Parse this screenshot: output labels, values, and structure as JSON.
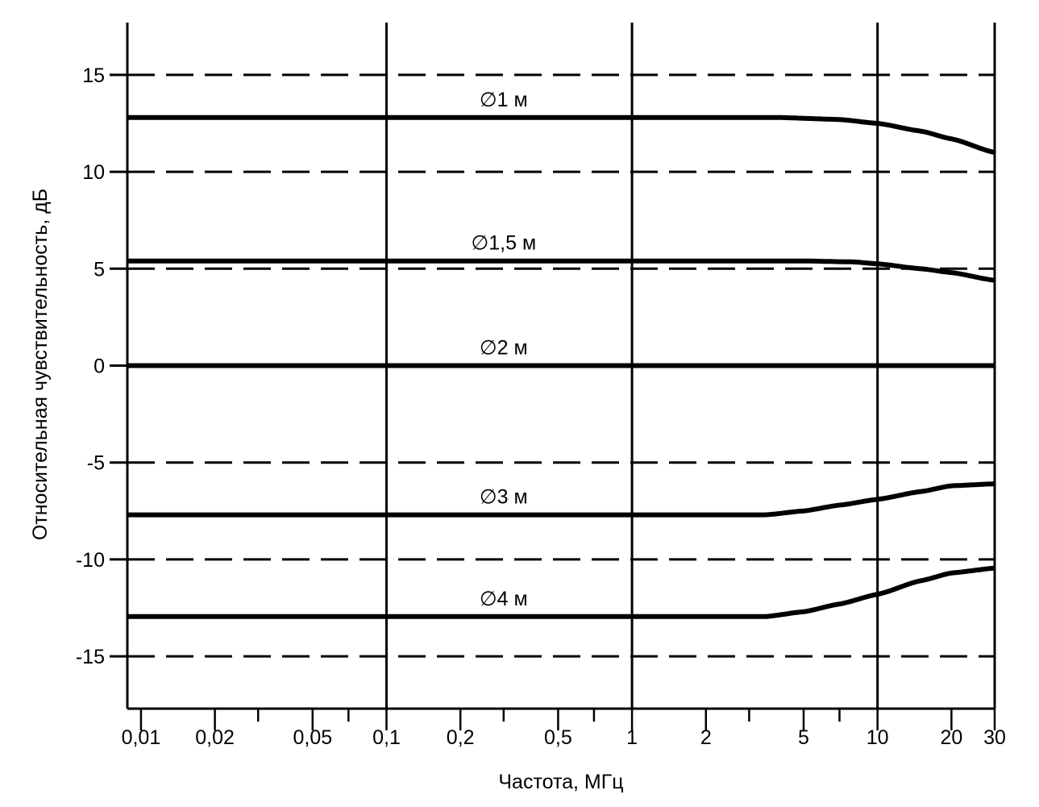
{
  "chart_data": {
    "type": "line",
    "title": "",
    "xlabel": "Частота, МГц",
    "ylabel": "Относительная чувствительность, дБ",
    "xscale": "log",
    "xlim": [
      0.0088,
      30
    ],
    "ylim": [
      -17.7,
      17.7
    ],
    "x_ticks": [
      0.01,
      0.02,
      0.05,
      0.1,
      0.2,
      0.5,
      1,
      2,
      5,
      10,
      20,
      30
    ],
    "x_tick_labels": [
      "0,01",
      "0,02",
      "0,05",
      "0,1",
      "0,2",
      "0,5",
      "1",
      "2",
      "5",
      "10",
      "20",
      "30"
    ],
    "x_minor_ticks": [
      0.01,
      0.02,
      0.03,
      0.05,
      0.07,
      0.1,
      0.2,
      0.3,
      0.5,
      0.7,
      1,
      2,
      3,
      5,
      7,
      10,
      20,
      30
    ],
    "x_grid_solid": [
      0.1,
      1,
      10
    ],
    "y_ticks": [
      15,
      10,
      5,
      0,
      -5,
      -10,
      -15
    ],
    "y_tick_labels": [
      "15",
      "10",
      "5",
      "0",
      "-5",
      "-10",
      "-15"
    ],
    "y_grid_dashed": [
      15,
      10,
      5,
      -5,
      -10,
      -15
    ],
    "grid": true,
    "series": [
      {
        "name": "∅1 м",
        "x": [
          0.0088,
          1,
          4,
          7,
          10,
          15,
          20,
          30
        ],
        "y": [
          12.8,
          12.8,
          12.8,
          12.7,
          12.5,
          12.1,
          11.7,
          11.0
        ]
      },
      {
        "name": "∅1,5 м",
        "x": [
          0.0088,
          1,
          5,
          8,
          10,
          15,
          20,
          30
        ],
        "y": [
          5.4,
          5.4,
          5.4,
          5.35,
          5.25,
          5.0,
          4.8,
          4.4
        ]
      },
      {
        "name": "∅2 м",
        "x": [
          0.0088,
          1,
          10,
          30
        ],
        "y": [
          0.0,
          0.0,
          0.0,
          0.0
        ]
      },
      {
        "name": "∅3 м",
        "x": [
          0.0088,
          1,
          3.5,
          5,
          7,
          10,
          15,
          20,
          30
        ],
        "y": [
          -7.7,
          -7.7,
          -7.7,
          -7.5,
          -7.2,
          -6.9,
          -6.5,
          -6.2,
          -6.1
        ]
      },
      {
        "name": "∅4 м",
        "x": [
          0.0088,
          1,
          3.5,
          5,
          7,
          10,
          15,
          20,
          30
        ],
        "y": [
          -12.95,
          -12.95,
          -12.95,
          -12.7,
          -12.3,
          -11.8,
          -11.1,
          -10.7,
          -10.45
        ]
      }
    ],
    "series_label_x": 0.3
  }
}
